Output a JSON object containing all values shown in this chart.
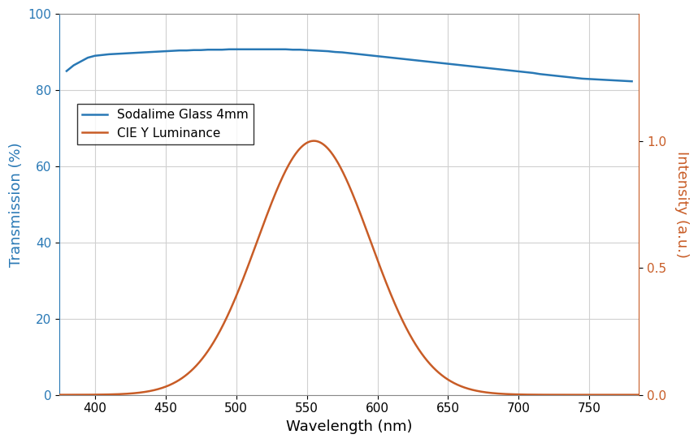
{
  "title": "",
  "xlabel": "Wavelength (nm)",
  "ylabel_left": "Transmission (%)",
  "ylabel_right": "Intensity (a.u.)",
  "legend_entries": [
    "Sodalime Glass 4mm",
    "CIE Y Luminance"
  ],
  "line_color_blue": "#2878b5",
  "line_color_orange": "#c85c26",
  "xlim": [
    375,
    785
  ],
  "ylim_left": [
    0,
    100
  ],
  "ylim_right": [
    0,
    1.5
  ],
  "yticks_left": [
    0,
    20,
    40,
    60,
    80,
    100
  ],
  "yticks_right": [
    0,
    0.5,
    1.0
  ],
  "xticks": [
    400,
    450,
    500,
    550,
    600,
    650,
    700,
    750
  ],
  "grid_color": "#d0d0d0",
  "background_color": "#ffffff",
  "glass_wavelengths": [
    380,
    385,
    390,
    395,
    400,
    405,
    410,
    415,
    420,
    425,
    430,
    435,
    440,
    445,
    450,
    455,
    460,
    465,
    470,
    475,
    480,
    485,
    490,
    495,
    500,
    505,
    510,
    515,
    520,
    525,
    530,
    535,
    540,
    545,
    550,
    555,
    560,
    565,
    570,
    575,
    580,
    585,
    590,
    595,
    600,
    605,
    610,
    615,
    620,
    625,
    630,
    635,
    640,
    645,
    650,
    655,
    660,
    665,
    670,
    675,
    680,
    685,
    690,
    695,
    700,
    705,
    710,
    715,
    720,
    725,
    730,
    735,
    740,
    745,
    750,
    755,
    760,
    765,
    770,
    775,
    780
  ],
  "glass_transmission": [
    85.0,
    86.5,
    87.5,
    88.5,
    89.0,
    89.2,
    89.4,
    89.5,
    89.6,
    89.7,
    89.8,
    89.9,
    90.0,
    90.1,
    90.2,
    90.3,
    90.4,
    90.4,
    90.5,
    90.5,
    90.6,
    90.6,
    90.6,
    90.7,
    90.7,
    90.7,
    90.7,
    90.7,
    90.7,
    90.7,
    90.7,
    90.7,
    90.6,
    90.6,
    90.5,
    90.4,
    90.3,
    90.2,
    90.0,
    89.9,
    89.7,
    89.5,
    89.3,
    89.1,
    88.9,
    88.7,
    88.5,
    88.3,
    88.1,
    87.9,
    87.7,
    87.5,
    87.3,
    87.1,
    86.9,
    86.7,
    86.5,
    86.3,
    86.1,
    85.9,
    85.7,
    85.5,
    85.3,
    85.1,
    84.9,
    84.7,
    84.5,
    84.2,
    84.0,
    83.8,
    83.6,
    83.4,
    83.2,
    83.0,
    82.9,
    82.8,
    82.7,
    82.6,
    82.5,
    82.4,
    82.3
  ],
  "cie_peak": 555,
  "cie_sigma": 40,
  "cie_peak_value": 1.0
}
